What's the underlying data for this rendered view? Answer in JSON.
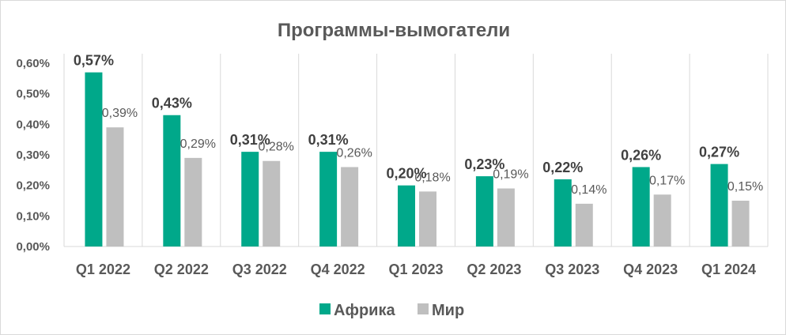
{
  "chart_data": {
    "type": "bar",
    "title": "Программы-вымогатели",
    "categories": [
      "Q1 2022",
      "Q2 2022",
      "Q3 2022",
      "Q4 2022",
      "Q1 2023",
      "Q2 2023",
      "Q3 2023",
      "Q4 2023",
      "Q1 2024"
    ],
    "series": [
      {
        "name": "Африка",
        "color": "#00a88a",
        "values": [
          0.57,
          0.43,
          0.31,
          0.31,
          0.2,
          0.23,
          0.22,
          0.26,
          0.27
        ],
        "labels": [
          "0,57%",
          "0,43%",
          "0,31%",
          "0,31%",
          "0,20%",
          "0,23%",
          "0,22%",
          "0,26%",
          "0,27%"
        ]
      },
      {
        "name": "Мир",
        "color": "#bfbfbf",
        "values": [
          0.39,
          0.29,
          0.28,
          0.26,
          0.18,
          0.19,
          0.14,
          0.17,
          0.15
        ],
        "labels": [
          "0,39%",
          "0,29%",
          "0,28%",
          "0,26%",
          "0,18%",
          "0,19%",
          "0,14%",
          "0,17%",
          "0,15%"
        ]
      }
    ],
    "ylim": [
      0,
      0.6
    ],
    "yticks": [
      0,
      0.1,
      0.2,
      0.3,
      0.4,
      0.5,
      0.6
    ],
    "ytick_labels": [
      "0,00%",
      "0,10%",
      "0,20%",
      "0,30%",
      "0,40%",
      "0,50%",
      "0,60%"
    ],
    "grid": "vertical-category-dividers",
    "legend": "bottom"
  }
}
